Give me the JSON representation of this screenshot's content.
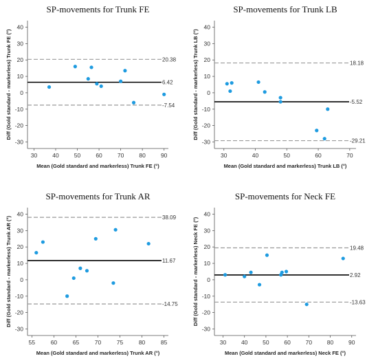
{
  "colors": {
    "point": "#1e9be0",
    "mean_line": "#000000",
    "loa_line": "#999999",
    "axis": "#555555"
  },
  "chart_data": [
    {
      "type": "scatter",
      "title": "SP-movements for Trunk FE",
      "xlabel": "Mean (Gold standard and markerless) Trunk FE (°)",
      "ylabel": "Diff (Gold standard - markerless) Trunk FE (°)",
      "xlim": [
        27,
        92
      ],
      "ylim": [
        -34,
        44
      ],
      "xticks": [
        30,
        40,
        50,
        60,
        70,
        80,
        90
      ],
      "yticks": [
        -30,
        -20,
        -10,
        0,
        10,
        20,
        30,
        40
      ],
      "reference_lines": [
        {
          "kind": "upper-loa",
          "value": 20.38,
          "label": "20.38"
        },
        {
          "kind": "mean",
          "value": 6.42,
          "label": "6.42"
        },
        {
          "kind": "lower-loa",
          "value": -7.54,
          "label": "-7.54"
        }
      ],
      "points": [
        {
          "x": 37,
          "y": 3.5
        },
        {
          "x": 49,
          "y": 16
        },
        {
          "x": 55,
          "y": 8.5
        },
        {
          "x": 56.5,
          "y": 15.5
        },
        {
          "x": 59,
          "y": 5.5
        },
        {
          "x": 61,
          "y": 4
        },
        {
          "x": 70,
          "y": 7
        },
        {
          "x": 72,
          "y": 13.5
        },
        {
          "x": 76,
          "y": -6
        },
        {
          "x": 90,
          "y": -1
        }
      ]
    },
    {
      "type": "scatter",
      "title": "SP-movements for Trunk LB",
      "xlabel": "Mean (Gold standard and markerless) Trunk LB (°)",
      "ylabel": "Diff (Gold standard - markerless) Trunk LB (°)",
      "xlim": [
        27,
        72
      ],
      "ylim": [
        -34,
        44
      ],
      "xticks": [
        30,
        40,
        50,
        60,
        70
      ],
      "yticks": [
        -30,
        -20,
        -10,
        0,
        10,
        20,
        30,
        40
      ],
      "reference_lines": [
        {
          "kind": "upper-loa",
          "value": 18.18,
          "label": "18.18"
        },
        {
          "kind": "mean",
          "value": -5.52,
          "label": "-5.52"
        },
        {
          "kind": "lower-loa",
          "value": -29.21,
          "label": "-29.21"
        }
      ],
      "points": [
        {
          "x": 31,
          "y": 5.5
        },
        {
          "x": 32,
          "y": 1
        },
        {
          "x": 32.5,
          "y": 6
        },
        {
          "x": 41,
          "y": 6.5
        },
        {
          "x": 43,
          "y": 0.5
        },
        {
          "x": 48,
          "y": -3
        },
        {
          "x": 48,
          "y": -5.5
        },
        {
          "x": 59.5,
          "y": -23
        },
        {
          "x": 62,
          "y": -28
        },
        {
          "x": 63,
          "y": -10
        }
      ]
    },
    {
      "type": "scatter",
      "title": "SP-movements for Trunk AR",
      "xlabel": "Mean (Gold standard and markerless) Trunk AR (°)",
      "ylabel": "Diff (Gold standard - markerless) Trunk AR (°)",
      "xlim": [
        54,
        86
      ],
      "ylim": [
        -34,
        44
      ],
      "xticks": [
        55,
        60,
        65,
        70,
        75,
        80,
        85
      ],
      "yticks": [
        -30,
        -20,
        -10,
        0,
        10,
        20,
        30,
        40
      ],
      "reference_lines": [
        {
          "kind": "upper-loa",
          "value": 38.09,
          "label": "38.09"
        },
        {
          "kind": "mean",
          "value": 11.67,
          "label": "11.67"
        },
        {
          "kind": "lower-loa",
          "value": -14.75,
          "label": "-14.75"
        }
      ],
      "points": [
        {
          "x": 56,
          "y": 16.5
        },
        {
          "x": 57.5,
          "y": 23
        },
        {
          "x": 63,
          "y": -10
        },
        {
          "x": 64.5,
          "y": 1
        },
        {
          "x": 66,
          "y": 7
        },
        {
          "x": 67.5,
          "y": 5.5
        },
        {
          "x": 69.5,
          "y": 25
        },
        {
          "x": 73.5,
          "y": -2
        },
        {
          "x": 74,
          "y": 30.5
        },
        {
          "x": 81.5,
          "y": 22
        }
      ]
    },
    {
      "type": "scatter",
      "title": "SP-movements for Neck FE",
      "xlabel": "Mean (Gold standard and markerless) Neck FE (°)",
      "ylabel": "Diff (Gold standard - markerless) Neck FE (°)",
      "xlim": [
        26,
        92
      ],
      "ylim": [
        -34,
        44
      ],
      "xticks": [
        30,
        40,
        50,
        60,
        70,
        80,
        90
      ],
      "yticks": [
        -30,
        -20,
        -10,
        0,
        10,
        20,
        30,
        40
      ],
      "reference_lines": [
        {
          "kind": "upper-loa",
          "value": 19.48,
          "label": "19.48"
        },
        {
          "kind": "mean",
          "value": 2.92,
          "label": "2.92"
        },
        {
          "kind": "lower-loa",
          "value": -13.63,
          "label": "-13.63"
        }
      ],
      "points": [
        {
          "x": 31,
          "y": 3
        },
        {
          "x": 40,
          "y": 2
        },
        {
          "x": 43,
          "y": 4.5
        },
        {
          "x": 47,
          "y": -3
        },
        {
          "x": 50.5,
          "y": 15
        },
        {
          "x": 57,
          "y": 3
        },
        {
          "x": 57.5,
          "y": 4.5
        },
        {
          "x": 59.5,
          "y": 5
        },
        {
          "x": 69,
          "y": -15
        },
        {
          "x": 86,
          "y": 13
        }
      ]
    }
  ]
}
